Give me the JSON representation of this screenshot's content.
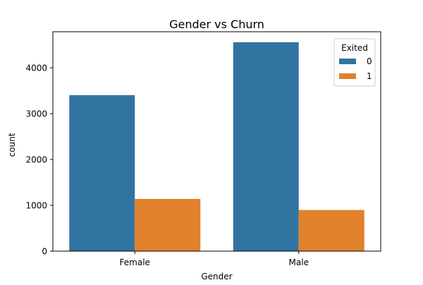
{
  "chart_data": {
    "type": "bar",
    "title": "Gender vs Churn",
    "xlabel": "Gender",
    "ylabel": "count",
    "categories": [
      "Female",
      "Male"
    ],
    "series": [
      {
        "name": "0",
        "values": [
          3404,
          4559
        ],
        "color": "#3274a1"
      },
      {
        "name": "1",
        "values": [
          1139,
          898
        ],
        "color": "#e1812c"
      }
    ],
    "ylim": [
      0,
      4787
    ],
    "yticks": [
      0,
      1000,
      2000,
      3000,
      4000
    ],
    "legend": {
      "title": "Exited",
      "placement": "top-right"
    },
    "grid": false
  }
}
